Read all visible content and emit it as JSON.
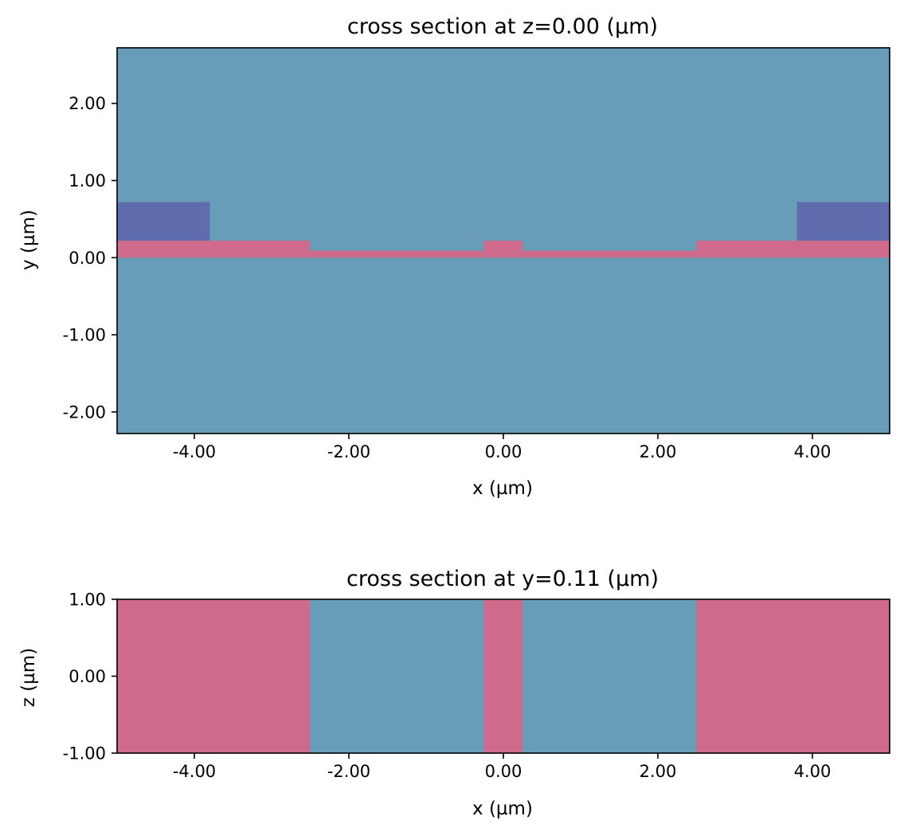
{
  "colors": {
    "background_medium": "#689db9",
    "core_medium": "#cf6a8c",
    "electrode_medium": "#5f6dad",
    "axes_edge": "#000000"
  },
  "chart_data": [
    {
      "type": "heatmap",
      "title": "cross section at z=0.00 (µm)",
      "xlabel": "x (µm)",
      "ylabel": "y (µm)",
      "xlim": [
        -5.0,
        5.0
      ],
      "ylim": [
        -2.28,
        2.72
      ],
      "xticks": [
        -4,
        -2,
        0,
        2,
        4
      ],
      "xtick_labels": [
        "-4.00",
        "-2.00",
        "0.00",
        "2.00",
        "4.00"
      ],
      "yticks": [
        -2,
        -1,
        0,
        1,
        2
      ],
      "ytick_labels": [
        "-2.00",
        "-1.00",
        "0.00",
        "1.00",
        "2.00"
      ],
      "background": "background_medium",
      "regions": [
        {
          "material": "core_medium",
          "x": [
            -5.0,
            -2.5
          ],
          "y": [
            0.0,
            0.22
          ]
        },
        {
          "material": "core_medium",
          "x": [
            -2.5,
            -0.25
          ],
          "y": [
            0.0,
            0.09
          ]
        },
        {
          "material": "core_medium",
          "x": [
            -0.25,
            0.25
          ],
          "y": [
            0.0,
            0.22
          ]
        },
        {
          "material": "core_medium",
          "x": [
            0.25,
            2.5
          ],
          "y": [
            0.0,
            0.09
          ]
        },
        {
          "material": "core_medium",
          "x": [
            2.5,
            5.0
          ],
          "y": [
            0.0,
            0.22
          ]
        },
        {
          "material": "electrode_medium",
          "x": [
            -5.0,
            -3.8
          ],
          "y": [
            0.22,
            0.72
          ]
        },
        {
          "material": "electrode_medium",
          "x": [
            3.8,
            5.0
          ],
          "y": [
            0.22,
            0.72
          ]
        }
      ]
    },
    {
      "type": "heatmap",
      "title": "cross section at y=0.11 (µm)",
      "xlabel": "x (µm)",
      "ylabel": "z (µm)",
      "xlim": [
        -5.0,
        5.0
      ],
      "ylim": [
        -1.0,
        1.0
      ],
      "xticks": [
        -4,
        -2,
        0,
        2,
        4
      ],
      "xtick_labels": [
        "-4.00",
        "-2.00",
        "0.00",
        "2.00",
        "4.00"
      ],
      "yticks": [
        -1,
        0,
        1
      ],
      "ytick_labels": [
        "-1.00",
        "0.00",
        "1.00"
      ],
      "background": "background_medium",
      "regions": [
        {
          "material": "core_medium",
          "x": [
            -5.0,
            -2.5
          ],
          "y": [
            -1.0,
            1.0
          ]
        },
        {
          "material": "core_medium",
          "x": [
            -0.25,
            0.25
          ],
          "y": [
            -1.0,
            1.0
          ]
        },
        {
          "material": "core_medium",
          "x": [
            2.5,
            5.0
          ],
          "y": [
            -1.0,
            1.0
          ]
        }
      ]
    }
  ]
}
